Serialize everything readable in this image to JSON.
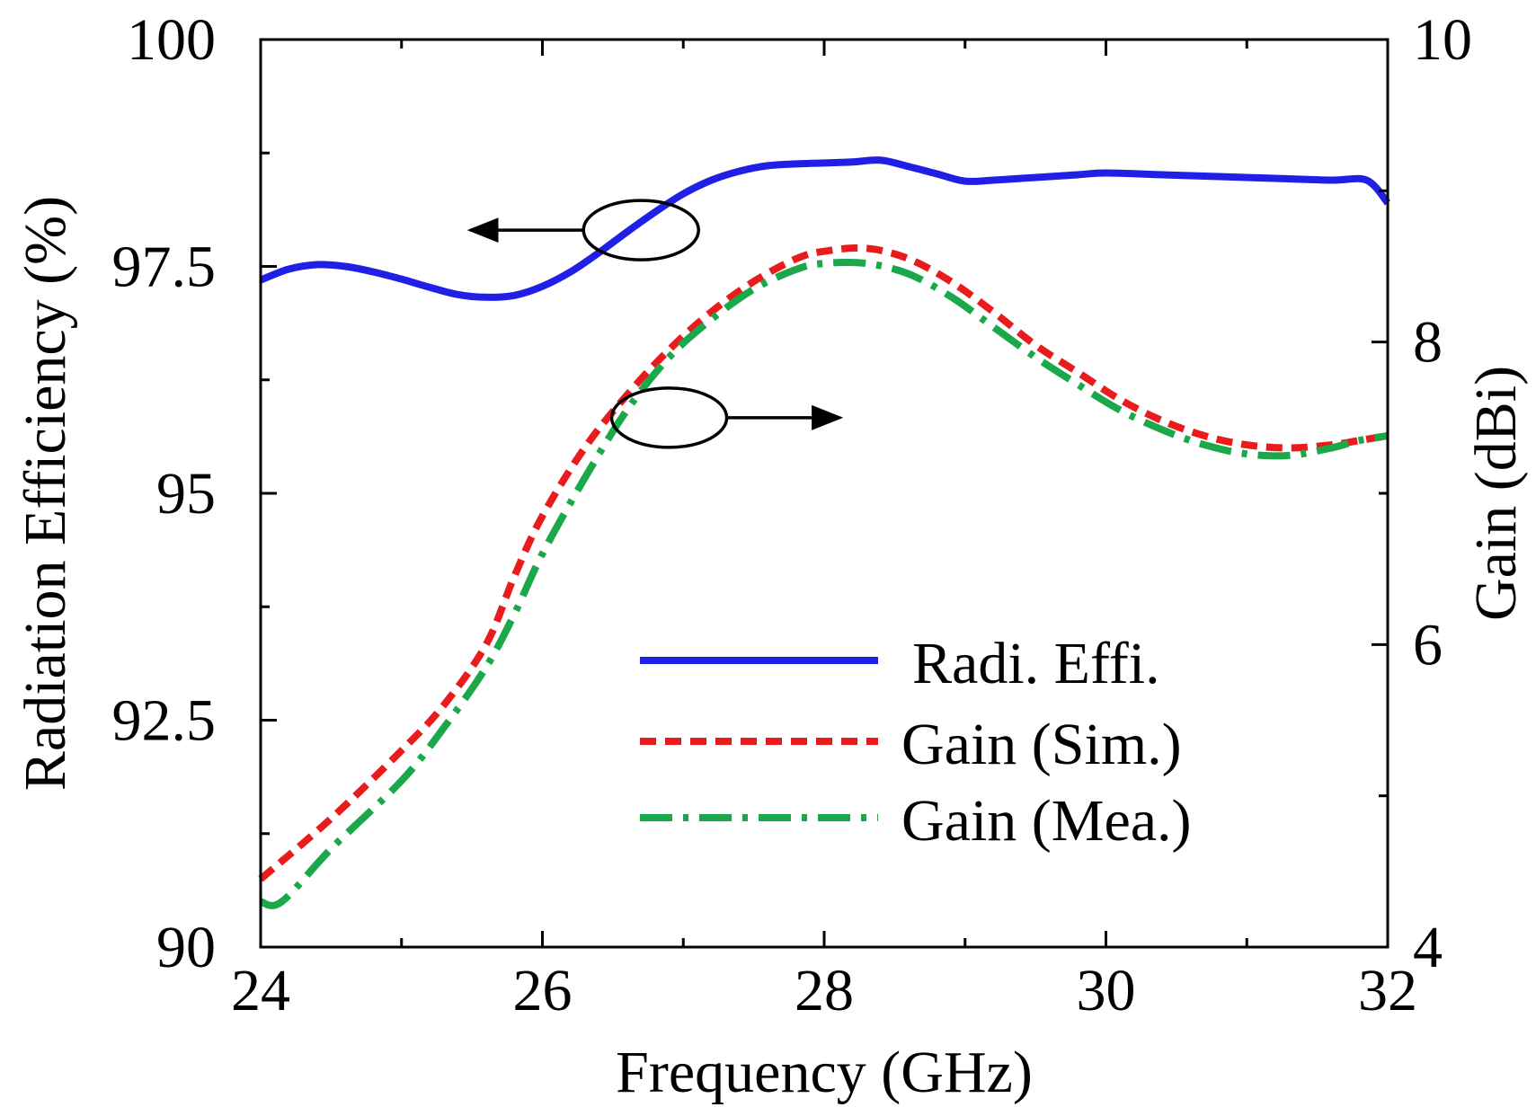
{
  "chart_data": {
    "type": "line",
    "xlabel": "Frequency (GHz)",
    "ylabel_left": "Radiation Efficiency (%)",
    "ylabel_right": "Gain (dBi)",
    "xlim": [
      24,
      32
    ],
    "ylim_left": [
      90,
      100
    ],
    "ylim_right": [
      4,
      10
    ],
    "x_ticks": [
      24,
      26,
      28,
      30,
      32
    ],
    "x_tick_labels": [
      "24",
      "26",
      "28",
      "30",
      "32"
    ],
    "y_left_ticks": [
      90,
      92.5,
      95,
      97.5,
      100
    ],
    "y_left_tick_labels": [
      "90",
      "92.5",
      "95",
      "97.5",
      "100"
    ],
    "y_right_ticks": [
      4,
      6,
      8,
      10
    ],
    "y_right_tick_labels": [
      "4",
      "6",
      "8",
      "10"
    ],
    "grid": false,
    "legend_position": "lower-right",
    "series": [
      {
        "name": "Radi. Effi.",
        "axis": "left",
        "color": "#1f1fe6",
        "style": "solid",
        "x": [
          24.0,
          24.2,
          24.4,
          24.6,
          24.8,
          25.0,
          25.2,
          25.4,
          25.6,
          25.8,
          26.0,
          26.2,
          26.4,
          26.6,
          26.8,
          27.0,
          27.2,
          27.4,
          27.6,
          27.8,
          28.0,
          28.2,
          28.4,
          28.6,
          28.8,
          29.0,
          29.2,
          29.4,
          29.6,
          29.8,
          30.0,
          30.4,
          30.8,
          31.2,
          31.6,
          31.85,
          32.0
        ],
        "values": [
          97.35,
          97.47,
          97.52,
          97.5,
          97.44,
          97.36,
          97.27,
          97.19,
          97.16,
          97.18,
          97.28,
          97.44,
          97.65,
          97.88,
          98.1,
          98.3,
          98.45,
          98.55,
          98.61,
          98.63,
          98.64,
          98.65,
          98.67,
          98.6,
          98.52,
          98.44,
          98.45,
          98.47,
          98.49,
          98.51,
          98.53,
          98.51,
          98.49,
          98.47,
          98.45,
          98.45,
          98.2
        ]
      },
      {
        "name": "Gain (Sim.)",
        "axis": "right",
        "color": "#e81c1c",
        "style": "dashed",
        "x": [
          24.0,
          24.5,
          25.0,
          25.3,
          25.6,
          25.8,
          26.0,
          26.3,
          26.6,
          26.9,
          27.2,
          27.5,
          27.8,
          28.0,
          28.3,
          28.6,
          28.9,
          29.2,
          29.5,
          29.8,
          30.1,
          30.4,
          30.7,
          31.0,
          31.3,
          31.6,
          31.8,
          32.0
        ],
        "values": [
          4.45,
          4.85,
          5.3,
          5.6,
          6.0,
          6.45,
          6.85,
          7.3,
          7.65,
          7.95,
          8.2,
          8.4,
          8.55,
          8.6,
          8.62,
          8.55,
          8.4,
          8.2,
          7.98,
          7.8,
          7.62,
          7.48,
          7.38,
          7.32,
          7.3,
          7.32,
          7.35,
          7.38
        ]
      },
      {
        "name": "Gain (Mea.)",
        "axis": "right",
        "color": "#1aa84a",
        "style": "dashdot",
        "x": [
          24.0,
          24.15,
          24.5,
          25.0,
          25.3,
          25.6,
          25.8,
          26.0,
          26.3,
          26.6,
          26.9,
          27.2,
          27.5,
          27.8,
          28.0,
          28.3,
          28.6,
          28.9,
          29.2,
          29.5,
          29.8,
          30.1,
          30.4,
          30.7,
          31.0,
          31.3,
          31.6,
          31.8,
          32.0
        ],
        "values": [
          4.3,
          4.3,
          4.65,
          5.1,
          5.45,
          5.85,
          6.2,
          6.6,
          7.1,
          7.55,
          7.9,
          8.15,
          8.35,
          8.48,
          8.52,
          8.52,
          8.45,
          8.3,
          8.1,
          7.9,
          7.72,
          7.55,
          7.42,
          7.32,
          7.26,
          7.25,
          7.3,
          7.35,
          7.38
        ]
      }
    ],
    "annotations": [
      {
        "type": "ellipse-arrow",
        "target_axis": "left",
        "direction": "left",
        "x": 26.7,
        "y": 97.9
      },
      {
        "type": "ellipse-arrow",
        "target_axis": "right",
        "direction": "right",
        "x": 26.9,
        "y": 7.5
      }
    ]
  }
}
